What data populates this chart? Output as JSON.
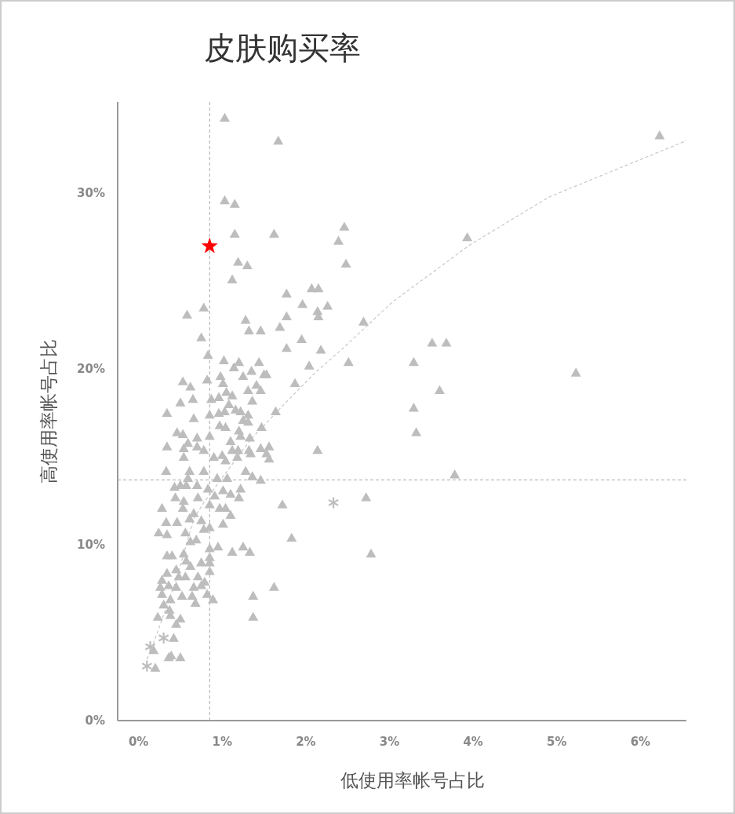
{
  "chart_data": {
    "type": "scatter",
    "title": "皮肤购买率",
    "xlabel": "低使用率帐号占比",
    "ylabel": "高使用率帐号占比",
    "xlim": [
      -0.25,
      6.55
    ],
    "ylim": [
      0,
      35.2
    ],
    "xticks": [
      {
        "value": 0,
        "label": "0%"
      },
      {
        "value": 1,
        "label": "1%"
      },
      {
        "value": 2,
        "label": "2%"
      },
      {
        "value": 3,
        "label": "3%"
      },
      {
        "value": 4,
        "label": "4%"
      },
      {
        "value": 5,
        "label": "5%"
      },
      {
        "value": 6,
        "label": "6%"
      }
    ],
    "yticks": [
      {
        "value": 0,
        "label": "0%"
      },
      {
        "value": 10,
        "label": "10%"
      },
      {
        "value": 20,
        "label": "20%"
      },
      {
        "value": 30,
        "label": "30%"
      }
    ],
    "grid": false,
    "ref_lines": [
      {
        "axis": "x",
        "value": 0.85,
        "color": "#aaaaaa",
        "line_style": "dashed"
      },
      {
        "axis": "y",
        "value": 13.7,
        "color": "#aaaaaa",
        "line_style": "dashed"
      }
    ],
    "series": [
      {
        "type": "line",
        "color": "#c8c8c8",
        "line_style": "dashed",
        "marker": "none",
        "x": [
          0.1,
          0.14,
          0.45,
          0.66,
          0.78,
          1.34,
          1.72,
          2.09,
          2.47,
          3.03,
          3.97,
          4.91,
          6.55
        ],
        "values": [
          3.5,
          3.9,
          8.0,
          11.5,
          12.4,
          16.0,
          17.9,
          19.7,
          21.3,
          23.8,
          27.1,
          29.8,
          33.0
        ]
      },
      {
        "type": "scatter",
        "color": "#bdbdbd",
        "marker": "triangle",
        "x": [
          1.03,
          1.67,
          6.23,
          1.03,
          1.15,
          2.46,
          1.15,
          1.62,
          3.93,
          2.39,
          1.19,
          1.3,
          2.48,
          1.12,
          2.07,
          2.15,
          1.77,
          1.96,
          2.26,
          2.14,
          2.15,
          0.58,
          0.78,
          1.28,
          1.32,
          1.46,
          1.69,
          2.69,
          0.75,
          1.95,
          3.51,
          3.68,
          1.77,
          2.18,
          0.83,
          1.2,
          1.44,
          1.02,
          2.04,
          2.51,
          3.29,
          5.23,
          1.5,
          0.53,
          0.82,
          1.87,
          3.6,
          0.62,
          1.12,
          3.29,
          0.5,
          0.34,
          1.64,
          0.66,
          3.32,
          1.47,
          0.46,
          2.14,
          3.78,
          2.72,
          1.72,
          1.83,
          2.78,
          1.62,
          1.37,
          1.37,
          0.36,
          0.5,
          0.18,
          0.2,
          1.77,
          1.14,
          1.35,
          1.53,
          1.25,
          0.98,
          1.01,
          1.41,
          1.46,
          1.05,
          1.31,
          0.65,
          0.87,
          0.96,
          1.08,
          1.36,
          0.85,
          0.96,
          1.03,
          1.16,
          1.22,
          1.25,
          1.31,
          1.31,
          0.97,
          1.04,
          1.2,
          0.53,
          0.7,
          0.85,
          1.22,
          1.1,
          1.33,
          0.34,
          0.59,
          0.7,
          0.54,
          0.78,
          1.12,
          1.19,
          1.32,
          1.46,
          1.56,
          0.9,
          1.0,
          1.04,
          1.18,
          1.34,
          1.53,
          1.56,
          0.54,
          0.33,
          0.61,
          0.78,
          1.28,
          1.36,
          1.46,
          1.06,
          0.94,
          0.59,
          0.43,
          0.57,
          0.7,
          0.5,
          0.83,
          1.01,
          1.1,
          1.22,
          1.2,
          0.44,
          0.54,
          0.71,
          0.91,
          0.28,
          0.53,
          0.85,
          0.97,
          1.04,
          1.1,
          1.01,
          0.61,
          0.66,
          0.75,
          0.33,
          0.46,
          0.24,
          0.34,
          0.56,
          0.78,
          0.85,
          0.62,
          0.69,
          0.85,
          0.95,
          1.12,
          1.25,
          1.33,
          0.34,
          0.4,
          0.54,
          0.57,
          0.75,
          0.85,
          0.85,
          0.62,
          0.34,
          0.45,
          0.48,
          0.56,
          0.71,
          0.79,
          0.85,
          0.28,
          0.26,
          0.36,
          0.45,
          0.66,
          0.75,
          0.28,
          0.52,
          0.64,
          0.82,
          0.89,
          0.68,
          0.38,
          0.3,
          0.37,
          0.38,
          0.23,
          0.5,
          0.45,
          0.42,
          0.39
        ],
        "values": [
          34.3,
          33.0,
          33.3,
          29.6,
          29.4,
          28.1,
          27.7,
          27.7,
          27.5,
          27.3,
          26.1,
          25.9,
          26.0,
          25.1,
          24.6,
          24.6,
          24.3,
          23.7,
          23.6,
          23.3,
          23.0,
          23.1,
          23.5,
          22.8,
          22.2,
          22.2,
          22.4,
          22.7,
          21.8,
          21.7,
          21.5,
          21.5,
          21.2,
          21.1,
          20.8,
          20.4,
          20.4,
          20.5,
          20.2,
          20.4,
          20.4,
          19.8,
          19.7,
          19.3,
          19.4,
          19.2,
          18.8,
          19.0,
          18.5,
          17.8,
          18.1,
          17.5,
          17.6,
          17.2,
          16.4,
          16.7,
          16.4,
          15.4,
          14.0,
          12.7,
          12.3,
          10.4,
          9.5,
          7.6,
          7.1,
          5.9,
          3.6,
          3.6,
          4.0,
          3.0,
          23.0,
          20.1,
          19.9,
          19.7,
          19.6,
          19.6,
          19.2,
          19.1,
          18.8,
          18.7,
          18.8,
          18.3,
          18.3,
          18.4,
          18.0,
          18.2,
          17.4,
          17.5,
          17.6,
          17.7,
          17.6,
          17.1,
          17.4,
          17.0,
          16.8,
          16.7,
          16.5,
          16.3,
          16.1,
          16.2,
          16.2,
          15.9,
          16.1,
          15.6,
          15.8,
          15.6,
          15.5,
          15.4,
          15.4,
          15.4,
          15.4,
          15.5,
          15.6,
          15.0,
          15.1,
          14.8,
          15.0,
          15.2,
          15.2,
          14.9,
          15.0,
          14.2,
          14.2,
          14.2,
          14.2,
          13.9,
          13.7,
          13.8,
          13.8,
          13.8,
          13.3,
          13.4,
          13.4,
          13.4,
          13.2,
          13.1,
          12.9,
          13.2,
          12.7,
          12.7,
          12.5,
          12.7,
          12.8,
          12.1,
          12.1,
          12.3,
          12.1,
          12.1,
          11.7,
          11.2,
          11.5,
          11.8,
          11.4,
          11.3,
          11.3,
          10.7,
          10.6,
          10.7,
          10.9,
          11.0,
          10.2,
          10.3,
          9.8,
          9.9,
          9.6,
          9.9,
          9.6,
          9.4,
          9.4,
          9.5,
          9.1,
          9.0,
          9.3,
          9.0,
          8.8,
          8.4,
          8.6,
          8.2,
          8.2,
          8.2,
          7.9,
          8.5,
          8.0,
          7.6,
          7.7,
          7.6,
          7.6,
          7.7,
          7.2,
          7.1,
          7.1,
          7.2,
          6.9,
          6.7,
          6.9,
          6.6,
          6.3,
          6.0,
          5.9,
          5.8,
          5.5,
          4.7,
          3.7
        ]
      },
      {
        "type": "scatter",
        "color": "#bdbdbd",
        "marker": "cross",
        "x": [
          0.3,
          0.14,
          0.1,
          2.33
        ],
        "values": [
          4.7,
          4.2,
          3.1,
          12.4
        ]
      },
      {
        "type": "scatter",
        "color": "#ff0000",
        "marker": "star",
        "x": [
          0.85
        ],
        "values": [
          27.0
        ]
      }
    ]
  }
}
